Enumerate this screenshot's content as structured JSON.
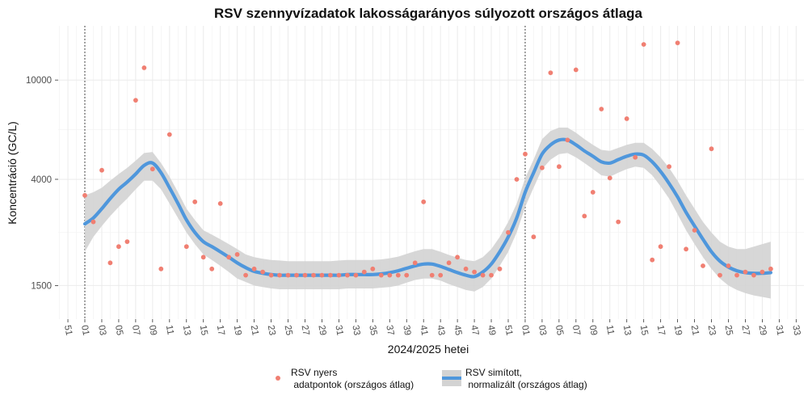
{
  "chart_data": {
    "type": "scatter",
    "title": "RSV szennyvízadatok lakosságarányos súlyozott országos átlaga",
    "xlabel": "2024/2025 hetei",
    "ylabel": "Koncentráció (GC/L)",
    "y_scale": "log",
    "ylim": [
      1100,
      16500
    ],
    "y_ticks": [
      {
        "value": 1500,
        "label": "1500"
      },
      {
        "value": 4000,
        "label": "4000"
      },
      {
        "value": 10000,
        "label": "10000"
      }
    ],
    "x_tick_labels": [
      "51",
      "01",
      "03",
      "05",
      "07",
      "09",
      "11",
      "13",
      "15",
      "17",
      "19",
      "21",
      "23",
      "25",
      "27",
      "29",
      "31",
      "33",
      "35",
      "37",
      "39",
      "41",
      "43",
      "45",
      "47",
      "49",
      "51",
      "01",
      "03",
      "05",
      "07",
      "09",
      "11",
      "13",
      "15",
      "17",
      "19",
      "21",
      "23",
      "25",
      "27",
      "29",
      "31",
      "33"
    ],
    "year_boundaries": [
      "2024 hét 01",
      "2025 hét 01"
    ],
    "grid": true,
    "legend_position": "bottom",
    "series": [
      {
        "name": "RSV nyers\n adatpontok (országos átlag)",
        "kind": "points",
        "color": "#f07f72",
        "points": [
          {
            "x": "2024-01",
            "y": 3450
          },
          {
            "x": "2024-02",
            "y": 2700
          },
          {
            "x": "2024-03",
            "y": 4350
          },
          {
            "x": "2024-04",
            "y": 1850
          },
          {
            "x": "2024-05",
            "y": 2150
          },
          {
            "x": "2024-06",
            "y": 2250
          },
          {
            "x": "2024-07",
            "y": 8300
          },
          {
            "x": "2024-08",
            "y": 11200
          },
          {
            "x": "2024-09",
            "y": 4400
          },
          {
            "x": "2024-10",
            "y": 1750
          },
          {
            "x": "2024-11",
            "y": 6050
          },
          {
            "x": "2024-13",
            "y": 2150
          },
          {
            "x": "2024-14",
            "y": 3250
          },
          {
            "x": "2024-15",
            "y": 1950
          },
          {
            "x": "2024-16",
            "y": 1750
          },
          {
            "x": "2024-17",
            "y": 3200
          },
          {
            "x": "2024-18",
            "y": 1950
          },
          {
            "x": "2024-19",
            "y": 2000
          },
          {
            "x": "2024-20",
            "y": 1650
          },
          {
            "x": "2024-21",
            "y": 1750
          },
          {
            "x": "2024-22",
            "y": 1700
          },
          {
            "x": "2024-23",
            "y": 1650
          },
          {
            "x": "2024-24",
            "y": 1650
          },
          {
            "x": "2024-25",
            "y": 1650
          },
          {
            "x": "2024-26",
            "y": 1650
          },
          {
            "x": "2024-27",
            "y": 1650
          },
          {
            "x": "2024-28",
            "y": 1650
          },
          {
            "x": "2024-29",
            "y": 1650
          },
          {
            "x": "2024-30",
            "y": 1650
          },
          {
            "x": "2024-31",
            "y": 1650
          },
          {
            "x": "2024-32",
            "y": 1650
          },
          {
            "x": "2024-33",
            "y": 1650
          },
          {
            "x": "2024-34",
            "y": 1700
          },
          {
            "x": "2024-35",
            "y": 1750
          },
          {
            "x": "2024-36",
            "y": 1650
          },
          {
            "x": "2024-37",
            "y": 1650
          },
          {
            "x": "2024-38",
            "y": 1650
          },
          {
            "x": "2024-39",
            "y": 1650
          },
          {
            "x": "2024-40",
            "y": 1850
          },
          {
            "x": "2024-41",
            "y": 3250
          },
          {
            "x": "2024-42",
            "y": 1650
          },
          {
            "x": "2024-43",
            "y": 1650
          },
          {
            "x": "2024-44",
            "y": 1850
          },
          {
            "x": "2024-45",
            "y": 1950
          },
          {
            "x": "2024-46",
            "y": 1750
          },
          {
            "x": "2024-47",
            "y": 1700
          },
          {
            "x": "2024-48",
            "y": 1650
          },
          {
            "x": "2024-49",
            "y": 1650
          },
          {
            "x": "2024-50",
            "y": 1750
          },
          {
            "x": "2024-51",
            "y": 2450
          },
          {
            "x": "2024-52",
            "y": 4000
          },
          {
            "x": "2025-01",
            "y": 5050
          },
          {
            "x": "2025-02",
            "y": 2350
          },
          {
            "x": "2025-03",
            "y": 4450
          },
          {
            "x": "2025-04",
            "y": 10700
          },
          {
            "x": "2025-05",
            "y": 4500
          },
          {
            "x": "2025-06",
            "y": 5750
          },
          {
            "x": "2025-07",
            "y": 11000
          },
          {
            "x": "2025-08",
            "y": 2850
          },
          {
            "x": "2025-09",
            "y": 3550
          },
          {
            "x": "2025-10",
            "y": 7650
          },
          {
            "x": "2025-11",
            "y": 4050
          },
          {
            "x": "2025-12",
            "y": 2700
          },
          {
            "x": "2025-13",
            "y": 7000
          },
          {
            "x": "2025-14",
            "y": 4900
          },
          {
            "x": "2025-15",
            "y": 13900
          },
          {
            "x": "2025-16",
            "y": 1900
          },
          {
            "x": "2025-17",
            "y": 2150
          },
          {
            "x": "2025-18",
            "y": 4500
          },
          {
            "x": "2025-19",
            "y": 14100
          },
          {
            "x": "2025-20",
            "y": 2100
          },
          {
            "x": "2025-21",
            "y": 2500
          },
          {
            "x": "2025-22",
            "y": 1800
          },
          {
            "x": "2025-23",
            "y": 5300
          },
          {
            "x": "2025-24",
            "y": 1650
          },
          {
            "x": "2025-25",
            "y": 1800
          },
          {
            "x": "2025-26",
            "y": 1650
          },
          {
            "x": "2025-27",
            "y": 1700
          },
          {
            "x": "2025-28",
            "y": 1650
          },
          {
            "x": "2025-29",
            "y": 1700
          },
          {
            "x": "2025-30",
            "y": 1750
          }
        ]
      },
      {
        "name": "RSV simított,\n normalizált (országos átlag)",
        "kind": "smooth_with_band",
        "color": "#4f97dc",
        "band_color": "#d3d3d3",
        "points": [
          {
            "x": "2024-01",
            "y": 2650,
            "lo": 2050,
            "hi": 3450
          },
          {
            "x": "2024-02",
            "y": 2800,
            "lo": 2350,
            "hi": 3550
          },
          {
            "x": "2024-03",
            "y": 3050,
            "lo": 2600,
            "hi": 3700
          },
          {
            "x": "2024-04",
            "y": 3350,
            "lo": 2850,
            "hi": 3950
          },
          {
            "x": "2024-05",
            "y": 3650,
            "lo": 3100,
            "hi": 4200
          },
          {
            "x": "2024-06",
            "y": 3900,
            "lo": 3350,
            "hi": 4450
          },
          {
            "x": "2024-07",
            "y": 4200,
            "lo": 3650,
            "hi": 4750
          },
          {
            "x": "2024-08",
            "y": 4550,
            "lo": 3950,
            "hi": 5100
          },
          {
            "x": "2024-09",
            "y": 4650,
            "lo": 3950,
            "hi": 5150
          },
          {
            "x": "2024-10",
            "y": 4250,
            "lo": 3650,
            "hi": 4650
          },
          {
            "x": "2024-11",
            "y": 3700,
            "lo": 3200,
            "hi": 4100
          },
          {
            "x": "2024-12",
            "y": 3200,
            "lo": 2800,
            "hi": 3550
          },
          {
            "x": "2024-13",
            "y": 2750,
            "lo": 2450,
            "hi": 3050
          },
          {
            "x": "2024-14",
            "y": 2450,
            "lo": 2200,
            "hi": 2750
          },
          {
            "x": "2024-15",
            "y": 2250,
            "lo": 2000,
            "hi": 2500
          },
          {
            "x": "2024-16",
            "y": 2150,
            "lo": 1900,
            "hi": 2400
          },
          {
            "x": "2024-17",
            "y": 2050,
            "lo": 1800,
            "hi": 2300
          },
          {
            "x": "2024-18",
            "y": 1950,
            "lo": 1700,
            "hi": 2200
          },
          {
            "x": "2024-19",
            "y": 1850,
            "lo": 1600,
            "hi": 2100
          },
          {
            "x": "2024-20",
            "y": 1770,
            "lo": 1550,
            "hi": 2000
          },
          {
            "x": "2024-21",
            "y": 1710,
            "lo": 1500,
            "hi": 1950
          },
          {
            "x": "2024-22",
            "y": 1680,
            "lo": 1480,
            "hi": 1920
          },
          {
            "x": "2024-23",
            "y": 1660,
            "lo": 1460,
            "hi": 1900
          },
          {
            "x": "2024-24",
            "y": 1650,
            "lo": 1450,
            "hi": 1890
          },
          {
            "x": "2024-25",
            "y": 1650,
            "lo": 1450,
            "hi": 1880
          },
          {
            "x": "2024-26",
            "y": 1650,
            "lo": 1450,
            "hi": 1880
          },
          {
            "x": "2024-27",
            "y": 1650,
            "lo": 1450,
            "hi": 1880
          },
          {
            "x": "2024-28",
            "y": 1650,
            "lo": 1450,
            "hi": 1880
          },
          {
            "x": "2024-29",
            "y": 1650,
            "lo": 1450,
            "hi": 1880
          },
          {
            "x": "2024-30",
            "y": 1650,
            "lo": 1450,
            "hi": 1880
          },
          {
            "x": "2024-31",
            "y": 1650,
            "lo": 1450,
            "hi": 1890
          },
          {
            "x": "2024-32",
            "y": 1660,
            "lo": 1460,
            "hi": 1900
          },
          {
            "x": "2024-33",
            "y": 1660,
            "lo": 1460,
            "hi": 1900
          },
          {
            "x": "2024-34",
            "y": 1660,
            "lo": 1460,
            "hi": 1900
          },
          {
            "x": "2024-35",
            "y": 1660,
            "lo": 1460,
            "hi": 1900
          },
          {
            "x": "2024-36",
            "y": 1670,
            "lo": 1470,
            "hi": 1910
          },
          {
            "x": "2024-37",
            "y": 1690,
            "lo": 1480,
            "hi": 1930
          },
          {
            "x": "2024-38",
            "y": 1720,
            "lo": 1500,
            "hi": 1960
          },
          {
            "x": "2024-39",
            "y": 1760,
            "lo": 1540,
            "hi": 2010
          },
          {
            "x": "2024-40",
            "y": 1800,
            "lo": 1580,
            "hi": 2060
          },
          {
            "x": "2024-41",
            "y": 1830,
            "lo": 1600,
            "hi": 2100
          },
          {
            "x": "2024-42",
            "y": 1830,
            "lo": 1600,
            "hi": 2100
          },
          {
            "x": "2024-43",
            "y": 1790,
            "lo": 1570,
            "hi": 2050
          },
          {
            "x": "2024-44",
            "y": 1740,
            "lo": 1520,
            "hi": 1990
          },
          {
            "x": "2024-45",
            "y": 1690,
            "lo": 1480,
            "hi": 1940
          },
          {
            "x": "2024-46",
            "y": 1650,
            "lo": 1440,
            "hi": 1900
          },
          {
            "x": "2024-47",
            "y": 1630,
            "lo": 1420,
            "hi": 1880
          },
          {
            "x": "2024-48",
            "y": 1700,
            "lo": 1480,
            "hi": 1950
          },
          {
            "x": "2024-49",
            "y": 1830,
            "lo": 1600,
            "hi": 2100
          },
          {
            "x": "2024-50",
            "y": 2050,
            "lo": 1800,
            "hi": 2350
          },
          {
            "x": "2024-51",
            "y": 2350,
            "lo": 2050,
            "hi": 2700
          },
          {
            "x": "2024-52",
            "y": 2800,
            "lo": 2450,
            "hi": 3200
          },
          {
            "x": "2025-01",
            "y": 3550,
            "lo": 3100,
            "hi": 4050
          },
          {
            "x": "2025-02",
            "y": 4250,
            "lo": 3700,
            "hi": 4800
          },
          {
            "x": "2025-03",
            "y": 5050,
            "lo": 4400,
            "hi": 5800
          },
          {
            "x": "2025-04",
            "y": 5500,
            "lo": 4800,
            "hi": 6250
          },
          {
            "x": "2025-05",
            "y": 5750,
            "lo": 5050,
            "hi": 6450
          },
          {
            "x": "2025-06",
            "y": 5750,
            "lo": 5100,
            "hi": 6450
          },
          {
            "x": "2025-07",
            "y": 5500,
            "lo": 4900,
            "hi": 6150
          },
          {
            "x": "2025-08",
            "y": 5200,
            "lo": 4650,
            "hi": 5800
          },
          {
            "x": "2025-09",
            "y": 4950,
            "lo": 4400,
            "hi": 5500
          },
          {
            "x": "2025-10",
            "y": 4700,
            "lo": 4150,
            "hi": 5250
          },
          {
            "x": "2025-11",
            "y": 4650,
            "lo": 4100,
            "hi": 5200
          },
          {
            "x": "2025-12",
            "y": 4800,
            "lo": 4250,
            "hi": 5350
          },
          {
            "x": "2025-13",
            "y": 4950,
            "lo": 4400,
            "hi": 5500
          },
          {
            "x": "2025-14",
            "y": 5050,
            "lo": 4500,
            "hi": 5600
          },
          {
            "x": "2025-15",
            "y": 5000,
            "lo": 4450,
            "hi": 5600
          },
          {
            "x": "2025-16",
            "y": 4700,
            "lo": 4150,
            "hi": 5300
          },
          {
            "x": "2025-17",
            "y": 4300,
            "lo": 3750,
            "hi": 4900
          },
          {
            "x": "2025-18",
            "y": 3850,
            "lo": 3350,
            "hi": 4450
          },
          {
            "x": "2025-19",
            "y": 3400,
            "lo": 2900,
            "hi": 3950
          },
          {
            "x": "2025-20",
            "y": 2950,
            "lo": 2500,
            "hi": 3450
          },
          {
            "x": "2025-21",
            "y": 2600,
            "lo": 2200,
            "hi": 3050
          },
          {
            "x": "2025-22",
            "y": 2300,
            "lo": 1950,
            "hi": 2700
          },
          {
            "x": "2025-23",
            "y": 2050,
            "lo": 1750,
            "hi": 2450
          },
          {
            "x": "2025-24",
            "y": 1880,
            "lo": 1600,
            "hi": 2250
          },
          {
            "x": "2025-25",
            "y": 1780,
            "lo": 1500,
            "hi": 2150
          },
          {
            "x": "2025-26",
            "y": 1720,
            "lo": 1440,
            "hi": 2100
          },
          {
            "x": "2025-27",
            "y": 1690,
            "lo": 1400,
            "hi": 2100
          },
          {
            "x": "2025-28",
            "y": 1680,
            "lo": 1370,
            "hi": 2150
          },
          {
            "x": "2025-29",
            "y": 1680,
            "lo": 1350,
            "hi": 2200
          },
          {
            "x": "2025-30",
            "y": 1690,
            "lo": 1330,
            "hi": 2250
          }
        ]
      }
    ]
  }
}
